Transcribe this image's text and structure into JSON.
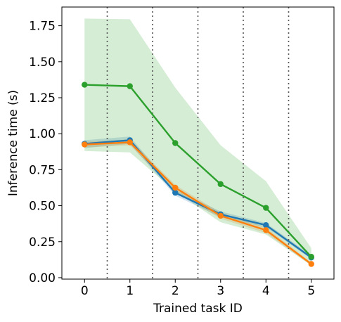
{
  "chart_data": {
    "type": "line",
    "xlabel": "Trained task ID",
    "ylabel": "Inference time (s)",
    "x": [
      0,
      1,
      2,
      3,
      4,
      5
    ],
    "xlim": [
      -0.5,
      5.5
    ],
    "ylim": [
      -0.01,
      1.88
    ],
    "xticks": [
      "0",
      "1",
      "2",
      "3",
      "4",
      "5"
    ],
    "yticks": [
      "0.00",
      "0.25",
      "0.50",
      "0.75",
      "1.00",
      "1.25",
      "1.50",
      "1.75"
    ],
    "ytick_values": [
      0.0,
      0.25,
      0.5,
      0.75,
      1.0,
      1.25,
      1.5,
      1.75
    ],
    "vlines": [
      0.5,
      1.5,
      2.5,
      3.5,
      4.5
    ],
    "grid": false,
    "legend": "none",
    "series": [
      {
        "color": "#1f77b4",
        "values": [
          0.93,
          0.955,
          0.59,
          0.44,
          0.365,
          0.14
        ],
        "band_low": [
          0.9,
          0.93,
          0.57,
          0.42,
          0.35,
          0.13
        ],
        "band_high": [
          0.955,
          0.98,
          0.61,
          0.46,
          0.38,
          0.155
        ]
      },
      {
        "color": "#ff7f0e",
        "values": [
          0.925,
          0.94,
          0.625,
          0.43,
          0.33,
          0.095
        ],
        "band_low": [
          0.905,
          0.92,
          0.6,
          0.41,
          0.31,
          0.085
        ],
        "band_high": [
          0.945,
          0.96,
          0.645,
          0.45,
          0.35,
          0.105
        ]
      },
      {
        "color": "#2ca02c",
        "values": [
          1.34,
          1.33,
          0.935,
          0.65,
          0.485,
          0.145
        ],
        "band_low": [
          0.88,
          0.87,
          0.6,
          0.385,
          0.3,
          0.085
        ],
        "band_high": [
          1.8,
          1.795,
          1.32,
          0.92,
          0.67,
          0.205
        ]
      }
    ]
  }
}
